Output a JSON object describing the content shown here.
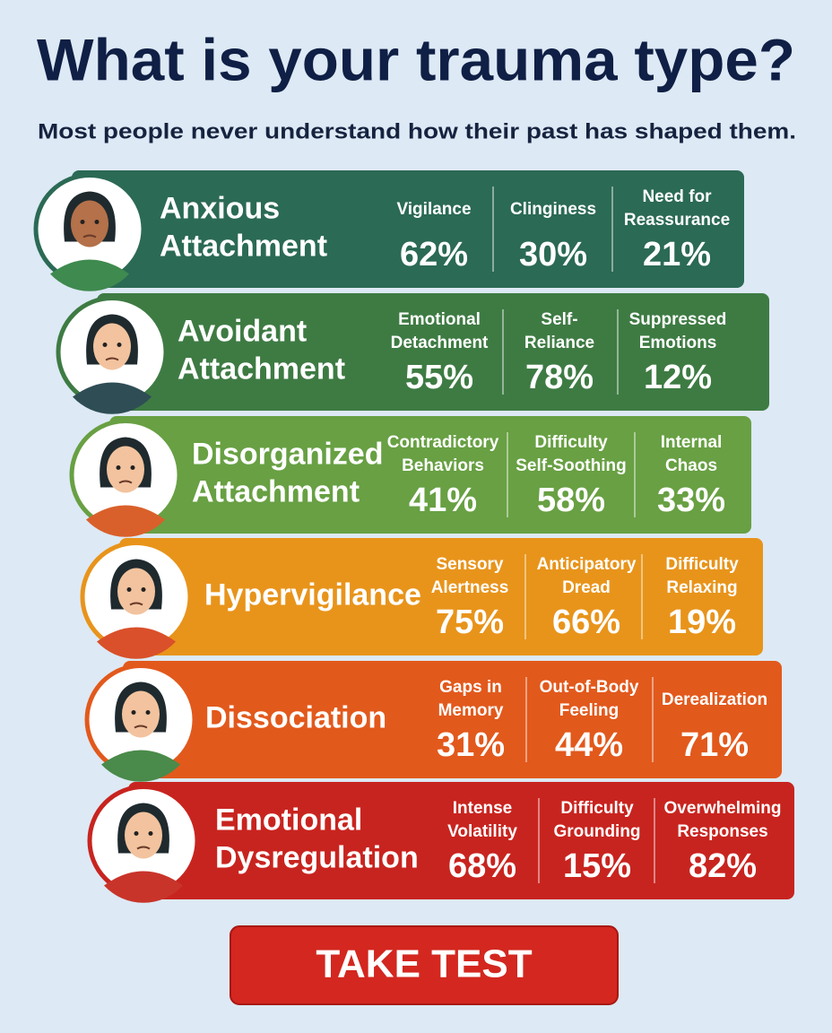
{
  "header": {
    "title": "What is your trauma type?",
    "subtitle": "Most people never understand how their past has shaped them."
  },
  "types": [
    {
      "title": [
        "Anxious",
        "Attachment"
      ],
      "color": "#2b6a54",
      "stats": [
        {
          "label": [
            "Vigilance"
          ],
          "value": "62%"
        },
        {
          "label": [
            "Clinginess"
          ],
          "value": "30%"
        },
        {
          "label": [
            "Need for",
            "Reassurance"
          ],
          "value": "21%"
        }
      ]
    },
    {
      "title": [
        "Avoidant",
        "Attachment"
      ],
      "color": "#3e7b43",
      "stats": [
        {
          "label": [
            "Emotional",
            "Detachment"
          ],
          "value": "55%"
        },
        {
          "label": [
            "Self-",
            "Reliance"
          ],
          "value": "78%"
        },
        {
          "label": [
            "Suppressed",
            "Emotions"
          ],
          "value": "12%"
        }
      ]
    },
    {
      "title": [
        "Disorganized",
        "Attachment"
      ],
      "color": "#68a043",
      "stats": [
        {
          "label": [
            "Contradictory",
            "Behaviors"
          ],
          "value": "41%"
        },
        {
          "label": [
            "Difficulty",
            "Self-Soothing"
          ],
          "value": "58%"
        },
        {
          "label": [
            "Internal",
            "Chaos"
          ],
          "value": "33%"
        }
      ]
    },
    {
      "title": [
        "Hypervigilance"
      ],
      "color": "#e8941b",
      "stats": [
        {
          "label": [
            "Sensory",
            "Alertness"
          ],
          "value": "75%"
        },
        {
          "label": [
            "Anticipatory",
            "Dread"
          ],
          "value": "66%"
        },
        {
          "label": [
            "Difficulty",
            "Relaxing"
          ],
          "value": "19%"
        }
      ]
    },
    {
      "title": [
        "Dissociation"
      ],
      "color": "#e2591c",
      "stats": [
        {
          "label": [
            "Gaps in",
            "Memory"
          ],
          "value": "31%"
        },
        {
          "label": [
            "Out-of-Body",
            "Feeling"
          ],
          "value": "44%"
        },
        {
          "label": [
            "Derealization"
          ],
          "value": "71%"
        }
      ]
    },
    {
      "title": [
        "Emotional",
        "Dysregulation"
      ],
      "color": "#c8241f",
      "stats": [
        {
          "label": [
            "Intense",
            "Volatility"
          ],
          "value": "68%"
        },
        {
          "label": [
            "Difficulty",
            "Grounding"
          ],
          "value": "15%"
        },
        {
          "label": [
            "Overwhelming",
            "Responses"
          ],
          "value": "82%"
        }
      ]
    }
  ],
  "button": {
    "label": "TAKE TEST"
  }
}
